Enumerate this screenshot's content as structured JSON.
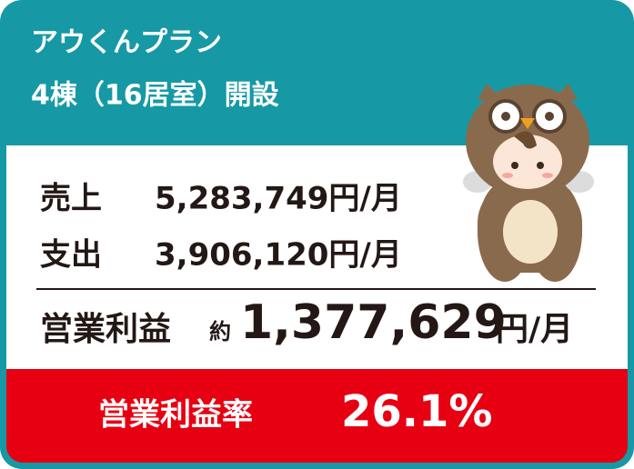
{
  "header": {
    "title_line1": "アウくんプラン",
    "title_line2": "4棟（16居室）開設"
  },
  "rows": [
    {
      "label": "売上",
      "value": "5,283,749円/月"
    },
    {
      "label": "支出",
      "value": "3,906,120円/月"
    }
  ],
  "profit": {
    "label": "営業利益",
    "prefix": "約",
    "value": "1,377,629",
    "unit": "円/月"
  },
  "margin": {
    "label": "営業利益率",
    "value": "26.1%"
  }
}
